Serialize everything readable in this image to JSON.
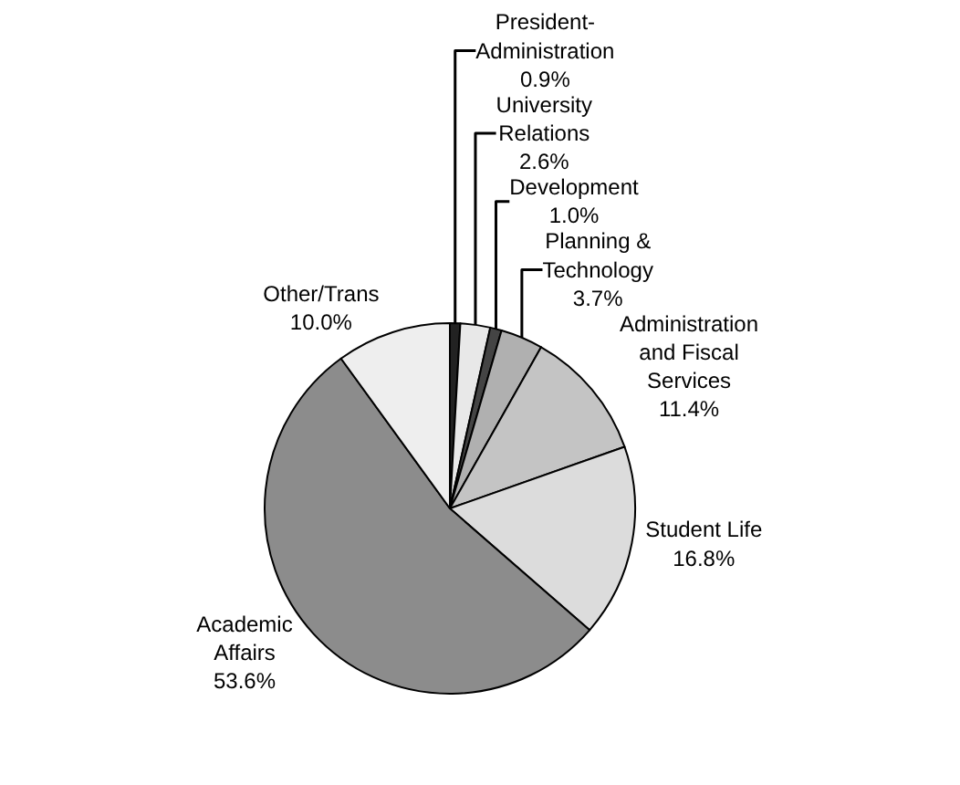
{
  "chart_data": {
    "type": "pie",
    "categories": [
      "President-Administration",
      "University Relations",
      "Development",
      "Planning & Technology",
      "Administration and Fiscal Services",
      "Student Life",
      "Academic Affairs",
      "Other/Trans"
    ],
    "values": [
      0.9,
      2.6,
      1.0,
      3.7,
      11.4,
      16.8,
      53.6,
      10.0
    ],
    "value_labels": [
      "0.9%",
      "2.6%",
      "1.0%",
      "3.7%",
      "11.4%",
      "16.8%",
      "53.6%",
      "10.0%"
    ],
    "colors": [
      "#222222",
      "#e8e8e8",
      "#444444",
      "#b0b0b0",
      "#c4c4c4",
      "#dcdcdc",
      "#8c8c8c",
      "#eeeeee"
    ],
    "legend": false
  }
}
